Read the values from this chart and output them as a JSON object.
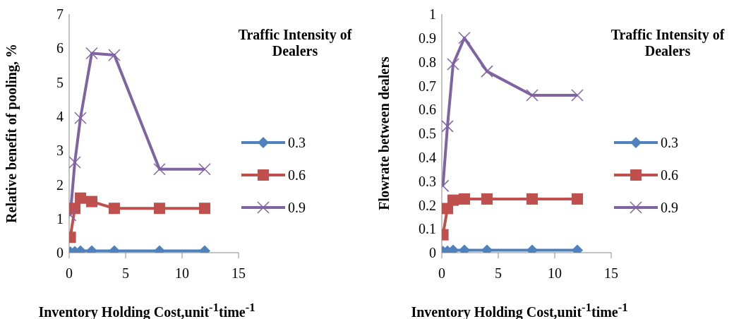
{
  "chart_data": [
    {
      "type": "line",
      "ylabel": "Relative benefit of pooling, %",
      "xlabel": "Inventory Holding Cost,unit$^{-1}$time$^{-1}$",
      "legend_title": "Traffic Intensity of Dealers",
      "legend": "right",
      "grid": false,
      "x": [
        0.1,
        0.5,
        1,
        2,
        4,
        8,
        12
      ],
      "xlim": [
        0,
        15
      ],
      "xticks": [
        0,
        5,
        10,
        15
      ],
      "ylim": [
        0,
        7
      ],
      "yticks": [
        0,
        1,
        2,
        3,
        4,
        5,
        6,
        7
      ],
      "series": [
        {
          "name": "0.3",
          "color": "#4f81bd",
          "marker": "diamond",
          "values": [
            0.02,
            0.03,
            0.05,
            0.05,
            0.05,
            0.05,
            0.05
          ]
        },
        {
          "name": "0.6",
          "color": "#c0504d",
          "marker": "square",
          "values": [
            0.45,
            1.3,
            1.6,
            1.5,
            1.3,
            1.3,
            1.3
          ]
        },
        {
          "name": "0.9",
          "color": "#8064a2",
          "marker": "cross",
          "values": [
            1.1,
            2.65,
            3.95,
            5.85,
            5.8,
            2.45,
            2.45
          ]
        }
      ]
    },
    {
      "type": "line",
      "ylabel": "Flowrate between dealers",
      "xlabel": "Inventory Holding Cost,unit$^{-1}$time$^{-1}$",
      "legend_title": "Traffic Intensity of Dealers",
      "legend": "right",
      "grid": false,
      "x": [
        0.1,
        0.5,
        1,
        2,
        4,
        8,
        12
      ],
      "xlim": [
        0,
        15
      ],
      "xticks": [
        0,
        5,
        10,
        15
      ],
      "ylim": [
        0,
        1
      ],
      "yticks": [
        0,
        0.1,
        0.2,
        0.3,
        0.4,
        0.5,
        0.6,
        0.7,
        0.8,
        0.9,
        1
      ],
      "series": [
        {
          "name": "0.3",
          "color": "#4f81bd",
          "marker": "diamond",
          "values": [
            0.005,
            0.007,
            0.01,
            0.01,
            0.01,
            0.01,
            0.01
          ]
        },
        {
          "name": "0.6",
          "color": "#c0504d",
          "marker": "square",
          "values": [
            0.075,
            0.185,
            0.22,
            0.225,
            0.225,
            0.225,
            0.225
          ]
        },
        {
          "name": "0.9",
          "color": "#8064a2",
          "marker": "cross",
          "values": [
            0.28,
            0.53,
            0.79,
            0.9,
            0.76,
            0.66,
            0.66
          ]
        }
      ]
    }
  ]
}
